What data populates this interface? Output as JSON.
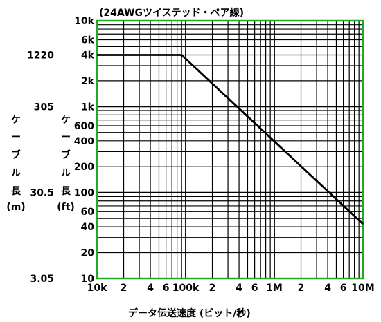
{
  "chart_data": {
    "type": "line",
    "title": "(24AWGツイステッド・ペア線)",
    "xlabel": "データ伝送速度 (ビット/秒)",
    "ylabel_ft_chars": [
      "ケ",
      "ー",
      "ブ",
      "ル",
      "長",
      "(ft)"
    ],
    "ylabel_m_chars": [
      "ケ",
      "ー",
      "ブ",
      "ル",
      "長",
      "(m)"
    ],
    "x_scale": "log",
    "y_scale": "log",
    "xlim": [
      10000,
      10000000
    ],
    "ylim": [
      10,
      10000
    ],
    "grid": true,
    "frame_color": "#22aa22",
    "line_color": "#000000",
    "x_ticks": [
      {
        "value": 10000,
        "label": "10k"
      },
      {
        "value": 20000,
        "label": "2"
      },
      {
        "value": 40000,
        "label": "4"
      },
      {
        "value": 60000,
        "label": "6"
      },
      {
        "value": 100000,
        "label": "100k"
      },
      {
        "value": 200000,
        "label": "2"
      },
      {
        "value": 400000,
        "label": "4"
      },
      {
        "value": 600000,
        "label": "6"
      },
      {
        "value": 1000000,
        "label": "1M"
      },
      {
        "value": 2000000,
        "label": "2"
      },
      {
        "value": 4000000,
        "label": "4"
      },
      {
        "value": 6000000,
        "label": "6"
      },
      {
        "value": 10000000,
        "label": "10M"
      }
    ],
    "y_ticks_ft": [
      {
        "value": 10000,
        "label": "10k"
      },
      {
        "value": 6000,
        "label": "6k"
      },
      {
        "value": 4000,
        "label": "4k"
      },
      {
        "value": 2000,
        "label": "2k"
      },
      {
        "value": 1000,
        "label": "1k"
      },
      {
        "value": 600,
        "label": "600"
      },
      {
        "value": 400,
        "label": "400"
      },
      {
        "value": 200,
        "label": "200"
      },
      {
        "value": 100,
        "label": "100"
      },
      {
        "value": 60,
        "label": "60"
      },
      {
        "value": 40,
        "label": "40"
      },
      {
        "value": 20,
        "label": "20"
      },
      {
        "value": 10,
        "label": "10"
      }
    ],
    "y_ticks_m": [
      {
        "value": 4000,
        "label": "1220"
      },
      {
        "value": 1000,
        "label": "305"
      },
      {
        "value": 100,
        "label": "30.5"
      },
      {
        "value": 10,
        "label": "3.05"
      }
    ],
    "series": [
      {
        "x": [
          10000,
          90000,
          10000000
        ],
        "y": [
          4000,
          4000,
          43
        ]
      }
    ]
  }
}
